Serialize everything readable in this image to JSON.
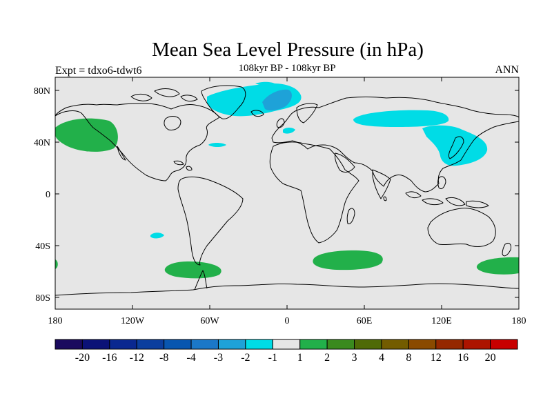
{
  "title": "Mean Sea Level Pressure (in hPa)",
  "left_label": "Expt = tdxo6-tdwt6",
  "center_label": "108kyr BP - 108kyr BP",
  "right_label": "ANN",
  "lat_ticks": [
    "80N",
    "40N",
    "0",
    "40S",
    "80S"
  ],
  "lon_ticks": [
    "180",
    "120W",
    "60W",
    "0",
    "60E",
    "120E",
    "180"
  ],
  "colorbar": {
    "colors": [
      "#1a0a5e",
      "#0b1277",
      "#0a2890",
      "#0b3e9e",
      "#0856b0",
      "#1b78c8",
      "#1ea2d8",
      "#00dce6",
      "#e6e6e6",
      "#22b04a",
      "#3a8a1e",
      "#4f6a06",
      "#735c00",
      "#8a4a00",
      "#952800",
      "#ad1400",
      "#c80000"
    ],
    "labels": [
      "-20",
      "-16",
      "-12",
      "-8",
      "-4",
      "-3",
      "-2",
      "-1",
      "1",
      "2",
      "3",
      "4",
      "8",
      "12",
      "16",
      "20"
    ]
  },
  "map": {
    "ocean_color": "#e6e6e6",
    "negative_color": "#00dce6",
    "negative_strong_color": "#1ea2d8",
    "positive_color": "#22b04a"
  }
}
